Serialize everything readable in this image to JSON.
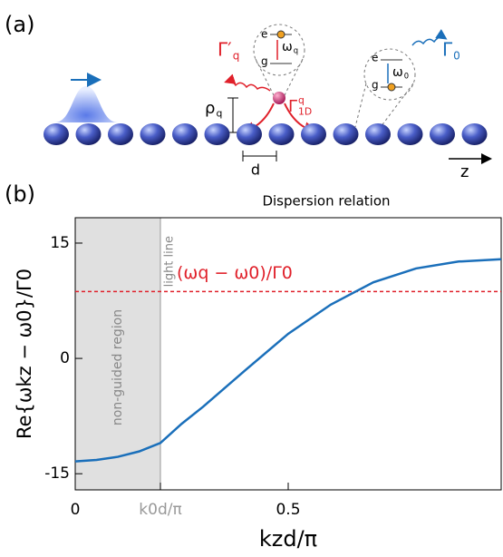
{
  "schematic": {
    "label": "(a)",
    "gamma_prime": {
      "base": "Γ′",
      "sub": "q"
    },
    "gamma_1d": {
      "base": "Γ",
      "sup": "q",
      "sub": "1D"
    },
    "rho": {
      "base": "ρ",
      "sub": "q"
    },
    "d": "d",
    "z": "z",
    "gamma0": {
      "base": "Γ",
      "sub": "0"
    },
    "levels_q": {
      "e": "e",
      "g": "g",
      "omega": {
        "base": "ω",
        "sub": "q"
      }
    },
    "levels_0": {
      "e": "e",
      "g": "g",
      "omega": {
        "base": "ω",
        "sub": "0"
      }
    }
  },
  "chart_data": {
    "type": "line",
    "panel_label": "(b)",
    "title": "Dispersion relation",
    "xlabel": "kzd/π",
    "ylabel": "Re{ωkz − ω0}/Γ0",
    "xlim": [
      0,
      1
    ],
    "ylim": [
      -17.1,
      18.3
    ],
    "xticks": [
      0,
      {
        "value": 0.2,
        "label": "k0d/π"
      },
      0.5
    ],
    "yticks": [
      {
        "value": -15,
        "label": "-15"
      },
      0,
      15
    ],
    "x": [
      0,
      0.05,
      0.1,
      0.15,
      0.2,
      0.25,
      0.3,
      0.4,
      0.5,
      0.6,
      0.7,
      0.8,
      0.9,
      1.0
    ],
    "series": [
      {
        "color": "#1a6fba",
        "values": [
          -13.4,
          -13.2,
          -12.8,
          -12.1,
          -11.0,
          -8.5,
          -6.3,
          -1.5,
          3.2,
          7.0,
          9.9,
          11.7,
          12.6,
          12.9
        ]
      }
    ],
    "hline": {
      "y": 8.7,
      "label": "(ωq − ω0)/Γ0",
      "color": "#e0202a"
    },
    "light_line": {
      "x": 0.2,
      "label": "light line"
    },
    "shaded_region_label": "non-guided region"
  }
}
